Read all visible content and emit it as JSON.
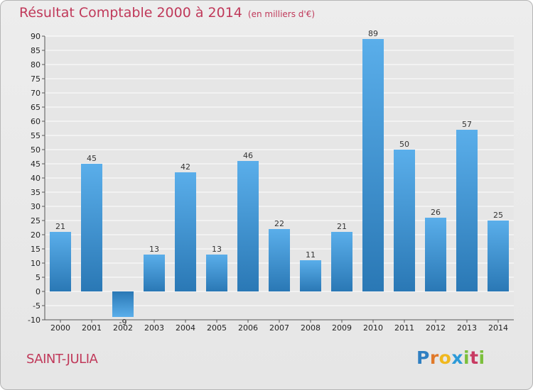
{
  "header": {
    "title": "Résultat Comptable 2000 à 2014",
    "subtitle": "(en milliers d'€)"
  },
  "footer": {
    "town": "SAINT-JULIA",
    "logo": "Proxiti"
  },
  "colors": {
    "bar_top": "#5aaeea",
    "bar_bottom": "#2a78b5",
    "title": "#c0395a",
    "grid": "#ffffff",
    "plot_bg": "#e6e6e6"
  },
  "chart_data": {
    "type": "bar",
    "title": "Résultat Comptable 2000 à 2014",
    "subtitle": "(en milliers d'€)",
    "xlabel": "",
    "ylabel": "",
    "categories": [
      "2000",
      "2001",
      "2002",
      "2003",
      "2004",
      "2005",
      "2006",
      "2007",
      "2008",
      "2009",
      "2010",
      "2011",
      "2012",
      "2013",
      "2014"
    ],
    "values": [
      21,
      45,
      -9,
      13,
      42,
      13,
      46,
      22,
      11,
      21,
      89,
      50,
      26,
      57,
      25
    ],
    "ylim": [
      -10,
      90
    ],
    "yticks": [
      -10,
      -5,
      0,
      5,
      10,
      15,
      20,
      25,
      30,
      35,
      40,
      45,
      50,
      55,
      60,
      65,
      70,
      75,
      80,
      85,
      90
    ],
    "grid": true,
    "legend": "none"
  }
}
